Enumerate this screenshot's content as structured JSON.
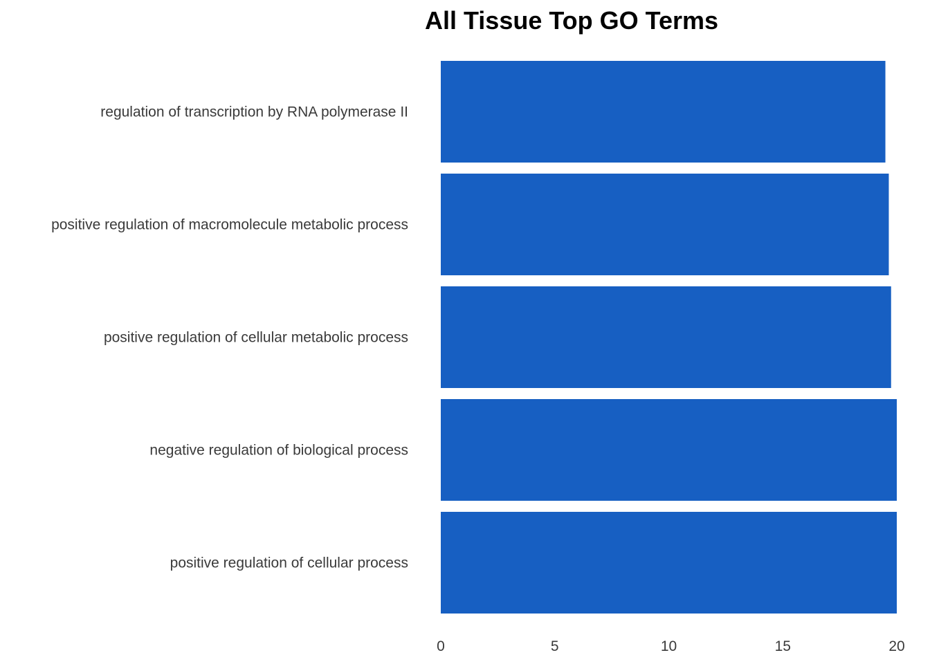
{
  "chart_data": {
    "type": "bar",
    "orientation": "horizontal",
    "title": "All Tissue Top GO Terms",
    "xlabel": "",
    "ylabel": "",
    "categories": [
      "regulation of transcription by RNA polymerase II",
      "positive regulation of macromolecule metabolic process",
      "positive regulation of cellular metabolic process",
      "negative regulation of biological process",
      "positive regulation of cellular process"
    ],
    "values": [
      19.5,
      19.65,
      19.75,
      20,
      20
    ],
    "xlim": [
      0,
      20
    ],
    "xticks": [
      "0",
      "5",
      "10",
      "15",
      "20"
    ],
    "grid": false,
    "legend": "none",
    "bar_color": "#175fc2"
  }
}
